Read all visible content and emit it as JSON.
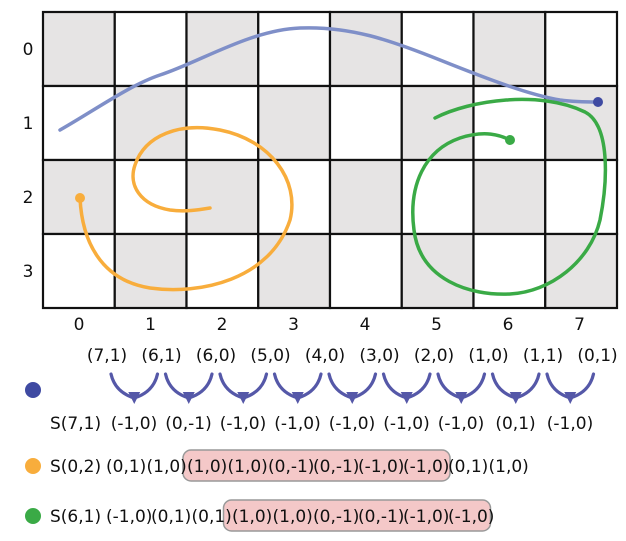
{
  "grid": {
    "cols": 8,
    "rows": 4,
    "col_labels": [
      "0",
      "1",
      "2",
      "3",
      "4",
      "5",
      "6",
      "7"
    ],
    "row_labels": [
      "0",
      "1",
      "2",
      "3"
    ],
    "shaded_color": "#e6e4e4",
    "line_color": "#111111"
  },
  "curves": [
    {
      "id": "blue",
      "color": "#7f8fc8"
    },
    {
      "id": "orange",
      "color": "#f8ad3c"
    },
    {
      "id": "green",
      "color": "#3aaa46"
    }
  ],
  "blue_sequence": {
    "coords": [
      "(7,1)",
      "(6,1)",
      "(6,0)",
      "(5,0)",
      "(4,0)",
      "(3,0)",
      "(2,0)",
      "(1,0)",
      "(1,1)",
      "(0,1)"
    ],
    "start": "S(7,1)",
    "moves": [
      "(-1,0)",
      "(0,-1)",
      "(-1,0)",
      "(-1,0)",
      "(-1,0)",
      "(-1,0)",
      "(-1,0)",
      "(0,1)",
      "(-1,0)"
    ],
    "arrow_color": "#5558a8",
    "dot_color": "#3f4aa2"
  },
  "orange_sequence": {
    "dot_color": "#f8ad3c",
    "start": "S(0,2)",
    "pre": [
      "(0,1)",
      "(1,0)"
    ],
    "highlight": [
      "(1,0)",
      "(1,0)",
      "(0,-1)",
      "(0,-1)",
      "(-1,0)",
      "(-1,0)"
    ],
    "post": [
      "(0,1)",
      "(1,0)"
    ]
  },
  "green_sequence": {
    "dot_color": "#3aaa46",
    "start": "S(6,1)",
    "pre": [
      "(-1,0)",
      "(0,1)",
      "(0,1)"
    ],
    "highlight": [
      "(1,0)",
      "(1,0)",
      "(0,-1)",
      "(0,-1)",
      "(-1,0)",
      "(-1,0)"
    ],
    "post": []
  },
  "highlight_style": {
    "fill": "#f4c8c8",
    "stroke": "#999999"
  }
}
